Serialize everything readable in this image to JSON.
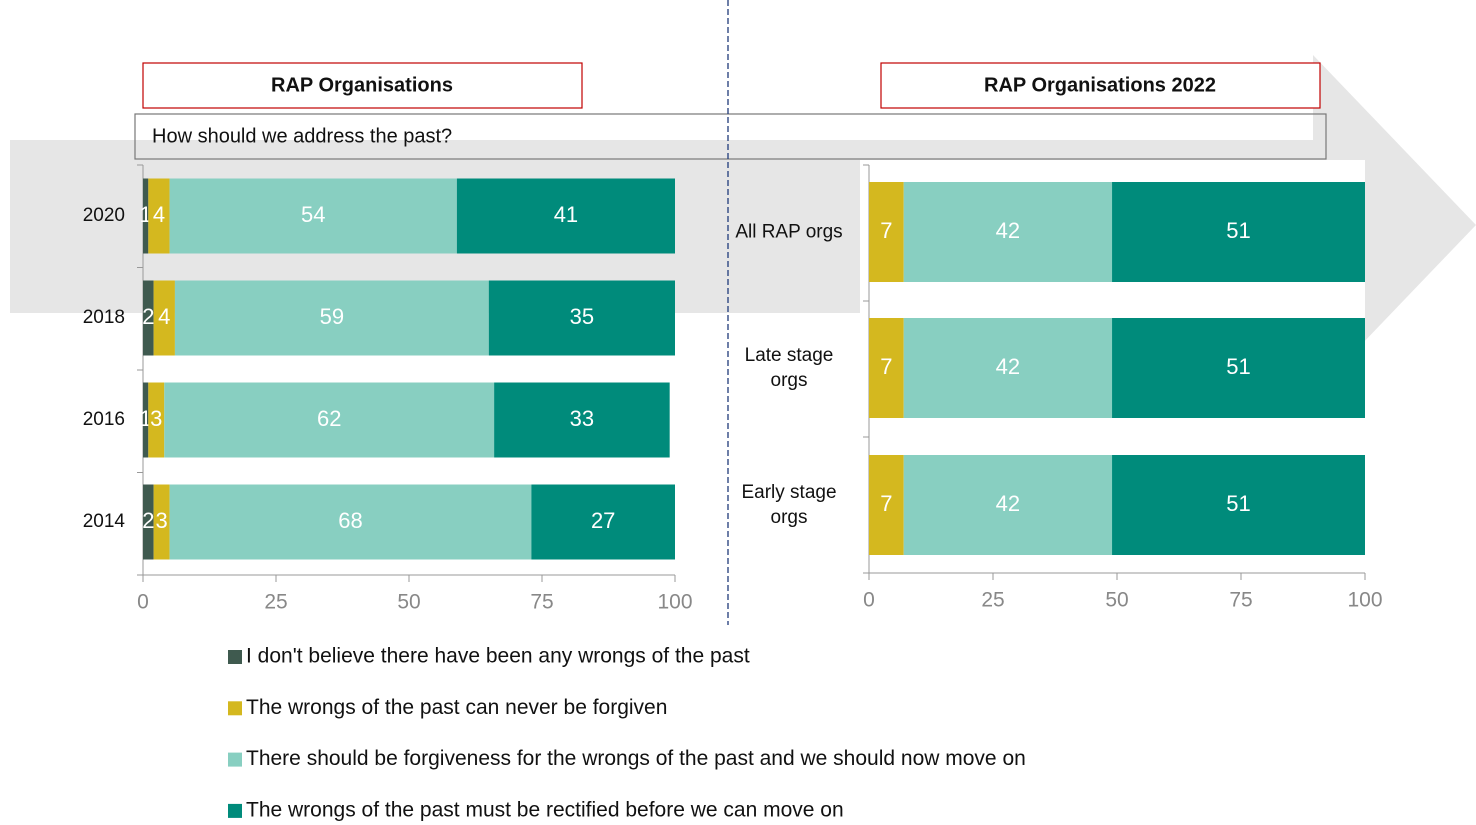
{
  "chart_data": [
    {
      "type": "bar",
      "orientation": "horizontal",
      "stacked": true,
      "title": "RAP Organisations",
      "subtitle": "How should we address the past?",
      "categories": [
        "2020",
        "2018",
        "2016",
        "2014"
      ],
      "series": [
        {
          "name": "I don't believe there have been any wrongs of the past",
          "color": "#3f5a4f",
          "values": [
            1,
            2,
            1,
            2
          ]
        },
        {
          "name": "The wrongs of the past can never be forgiven",
          "color": "#d4b81f",
          "values": [
            4,
            4,
            3,
            3
          ]
        },
        {
          "name": "There should be forgiveness for the wrongs of the past and we should now move on",
          "color": "#88cfc1",
          "values": [
            54,
            59,
            62,
            68
          ]
        },
        {
          "name": "The wrongs of the past must be rectified before we can move on",
          "color": "#008b7b",
          "values": [
            41,
            35,
            33,
            27
          ]
        }
      ],
      "xlim": [
        0,
        100
      ],
      "xticks": [
        0,
        25,
        50,
        75,
        100
      ]
    },
    {
      "type": "bar",
      "orientation": "horizontal",
      "stacked": true,
      "title": "RAP Organisations 2022",
      "categories": [
        "All RAP orgs",
        "Late stage orgs",
        "Early stage orgs"
      ],
      "series": [
        {
          "color": "#d4b81f",
          "values": [
            7,
            7,
            7
          ]
        },
        {
          "color": "#88cfc1",
          "values": [
            42,
            42,
            42
          ]
        },
        {
          "color": "#008b7b",
          "values": [
            51,
            51,
            51
          ]
        }
      ],
      "xlim": [
        0,
        100
      ],
      "xticks": [
        0,
        25,
        50,
        75,
        100
      ]
    }
  ]
}
